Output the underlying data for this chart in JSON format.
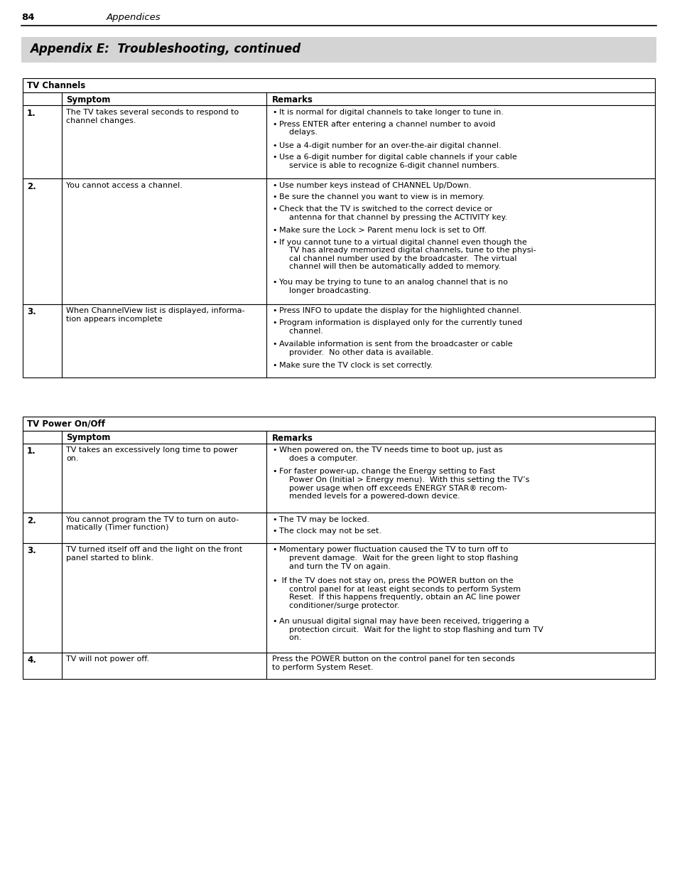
{
  "page_number": "84",
  "page_header_text": "Appendices",
  "section_title": "Appendix E:  Troubleshooting, continued",
  "background_color": "#ffffff",
  "header_bar_color": "#d4d4d4",
  "table1_title": "TV Channels",
  "table2_title": "TV Power On/Off",
  "col_header_symptom": "Symptom",
  "col_header_remarks": "Remarks",
  "table1_rows": [
    {
      "num": "1.",
      "symptom": "The TV takes several seconds to respond to\nchannel changes.",
      "remarks": [
        "It is normal for digital channels to take longer to tune in.",
        "Press ENTER after entering a channel number to avoid\n    delays.",
        "Use a 4-digit number for an over-the-air digital channel.",
        "Use a 6-digit number for digital cable channels if your cable\n    service is able to recognize 6-digit channel numbers."
      ]
    },
    {
      "num": "2.",
      "symptom": "You cannot access a channel.",
      "remarks": [
        "Use number keys instead of CHANNEL Up/Down.",
        "Be sure the channel you want to view is in memory.",
        "Check that the TV is switched to the correct device or\n    antenna for that channel by pressing the ACTIVITY key.",
        "Make sure the Lock > Parent menu lock is set to Off.",
        "If you cannot tune to a virtual digital channel even though the\n    TV has already memorized digital channels, tune to the physi-\n    cal channel number used by the broadcaster.  The virtual\n    channel will then be automatically added to memory.",
        "You may be trying to tune to an analog channel that is no\n    longer broadcasting."
      ]
    },
    {
      "num": "3.",
      "symptom": "When ChannelView list is displayed, informa-\ntion appears incomplete",
      "remarks": [
        "Press INFO to update the display for the highlighted channel.",
        "Program information is displayed only for the currently tuned\n    channel.",
        "Available information is sent from the broadcaster or cable\n    provider.  No other data is available.",
        "Make sure the TV clock is set correctly."
      ]
    }
  ],
  "table2_rows": [
    {
      "num": "1.",
      "symptom": "TV takes an excessively long time to power\non.",
      "remarks": [
        "When powered on, the TV needs time to boot up, just as\n    does a computer.",
        "For faster power-up, change the Energy setting to Fast\n    Power On (Initial > Energy menu).  With this setting the TV’s\n    power usage when off exceeds ENERGY STAR® recom-\n    mended levels for a powered-down device."
      ]
    },
    {
      "num": "2.",
      "symptom": "You cannot program the TV to turn on auto-\nmatically (Timer function)",
      "remarks": [
        "The TV may be locked.",
        "The clock may not be set."
      ]
    },
    {
      "num": "3.",
      "symptom": "TV turned itself off and the light on the front\npanel started to blink.",
      "remarks": [
        "Momentary power fluctuation caused the TV to turn off to\n    prevent damage.  Wait for the green light to stop flashing\n    and turn the TV on again.",
        " If the TV does not stay on, press the POWER button on the\n    control panel for at least eight seconds to perform System\n    Reset.  If this happens frequently, obtain an AC line power\n    conditioner/surge protector.",
        "An unusual digital signal may have been received, triggering a\n    protection circuit.  Wait for the light to stop flashing and turn TV\n    on."
      ]
    },
    {
      "num": "4.",
      "symptom": "TV will not power off.",
      "remarks_plain": "Press the POWER button on the control panel for ten seconds\nto perform System Reset."
    }
  ]
}
